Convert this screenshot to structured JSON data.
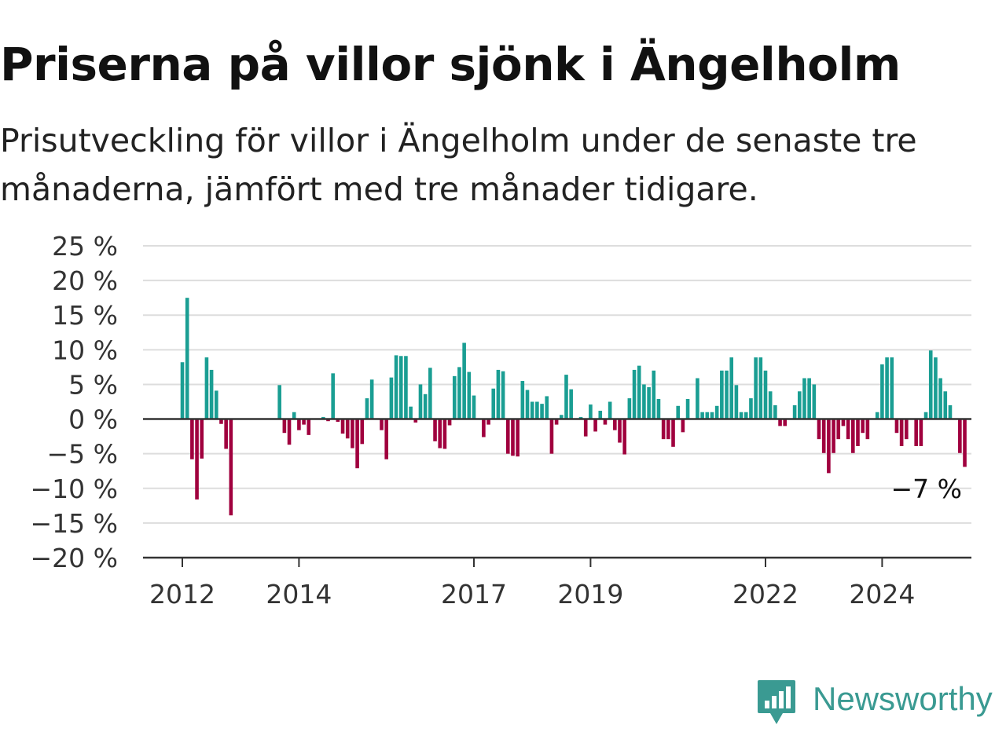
{
  "title": "Priserna på villor sjönk i Ängelholm",
  "subtitle": "Prisutveckling för villor i Ängelholm under de senaste tre månaderna, jämfört med tre månader tidigare.",
  "brand": {
    "name": "Newsworthy",
    "icon": "newsworthy-logo-icon"
  },
  "colors": {
    "positive": "#1a9e93",
    "negative": "#a0003e",
    "grid": "#dddddd",
    "axis": "#333333"
  },
  "chart_data": {
    "type": "bar",
    "x_start": "2012-01",
    "x_interval": "month",
    "ylim": [
      -20,
      25
    ],
    "y_ticks": [
      -20,
      -15,
      -10,
      -5,
      0,
      5,
      10,
      15,
      20,
      25
    ],
    "y_tick_labels": [
      "−20 %",
      "−15 %",
      "−10 %",
      "−5 %",
      "0 %",
      "5 %",
      "10 %",
      "15 %",
      "20 %",
      "25 %"
    ],
    "x_ticks": [
      {
        "label": "2012",
        "date": "2012-01"
      },
      {
        "label": "2014",
        "date": "2014-01"
      },
      {
        "label": "2017",
        "date": "2017-01"
      },
      {
        "label": "2019",
        "date": "2019-01"
      },
      {
        "label": "2022",
        "date": "2022-01"
      },
      {
        "label": "2024",
        "date": "2024-01"
      }
    ],
    "grid": true,
    "annotation": {
      "text": "−7 %",
      "date": "2025-01",
      "value": -7
    },
    "values": [
      8.2,
      17.5,
      -5.8,
      -11.6,
      -5.7,
      8.9,
      7.1,
      4.1,
      -0.7,
      -4.3,
      -13.9,
      null,
      null,
      null,
      null,
      null,
      null,
      null,
      null,
      null,
      4.9,
      -2.0,
      -3.7,
      1.0,
      -1.6,
      -0.8,
      -2.3,
      null,
      null,
      0.3,
      -0.3,
      6.6,
      -0.4,
      -2.1,
      -2.8,
      -4.2,
      -7.1,
      -3.6,
      3.0,
      5.7,
      null,
      -1.6,
      -5.8,
      6.0,
      9.2,
      9.1,
      9.1,
      1.8,
      -0.5,
      5.0,
      3.6,
      7.4,
      -3.2,
      -4.2,
      -4.3,
      -0.9,
      6.2,
      7.5,
      11.0,
      6.8,
      3.4,
      null,
      -2.6,
      -0.8,
      4.4,
      7.1,
      6.9,
      -5.0,
      -5.3,
      -5.4,
      5.5,
      4.2,
      2.5,
      2.5,
      2.2,
      3.3,
      -5.0,
      -0.8,
      0.6,
      6.4,
      4.3,
      null,
      0.3,
      -2.5,
      2.1,
      -1.8,
      1.2,
      -0.8,
      2.5,
      -1.6,
      -3.4,
      -5.1,
      3.0,
      7.1,
      7.7,
      5.0,
      4.6,
      7.0,
      2.9,
      -2.9,
      -2.9,
      -4.0,
      1.9,
      -1.9,
      2.9,
      null,
      5.9,
      1.0,
      1.0,
      1.0,
      1.9,
      7.0,
      7.0,
      8.9,
      4.9,
      1.0,
      1.0,
      3.0,
      8.9,
      8.9,
      7.0,
      4.0,
      2.0,
      -1.0,
      -1.0,
      null,
      2.0,
      4.0,
      5.9,
      5.9,
      5.0,
      -2.9,
      -4.9,
      -7.8,
      -4.9,
      -2.9,
      -1.0,
      -2.9,
      -4.9,
      -3.9,
      -2.0,
      -2.9,
      null,
      1.0,
      7.9,
      8.9,
      8.9,
      -2.0,
      -3.9,
      -2.9,
      null,
      -3.9,
      -3.9,
      1.0,
      9.9,
      8.9,
      5.9,
      4.0,
      2.0,
      null,
      -4.9,
      -6.9
    ]
  }
}
